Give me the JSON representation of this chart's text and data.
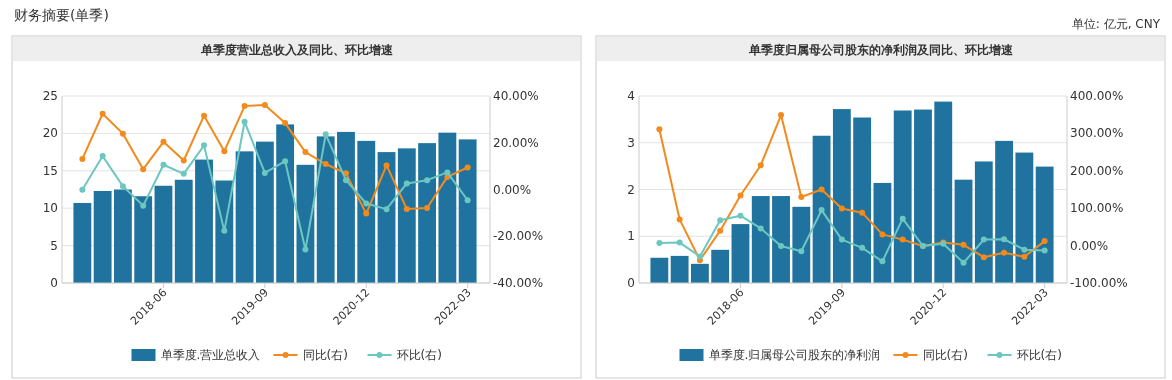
{
  "chart_data": [
    {
      "type": "bar",
      "title": "单季度营业总收入及同比、环比增速",
      "annotations": [
        "财务摘要(单季)"
      ],
      "categories": [
        null,
        null,
        null,
        null,
        "2018-06",
        null,
        null,
        null,
        null,
        "2019-09",
        null,
        null,
        null,
        null,
        "2020-12",
        null,
        null,
        null,
        null,
        "2022-03"
      ],
      "series": [
        {
          "name": "单季度.营业总收入",
          "color": "#21739f",
          "values": [
            10.7,
            12.3,
            12.5,
            11.6,
            13.0,
            13.8,
            16.5,
            13.7,
            17.6,
            18.9,
            21.2,
            15.8,
            19.6,
            20.2,
            19.0,
            17.5,
            18.0,
            18.7,
            20.1,
            19.2
          ]
        },
        {
          "name": "同比(右)",
          "type": "line",
          "axis": "y2",
          "color": "#f28a1e",
          "values": [
            13.1,
            32.4,
            23.9,
            8.7,
            20.4,
            12.4,
            31.6,
            16.4,
            35.7,
            36.1,
            28.4,
            16.0,
            10.9,
            6.9,
            -10.3,
            10.3,
            -8.3,
            -7.9,
            5.4,
            9.4
          ]
        },
        {
          "name": "环比(右)",
          "type": "line",
          "axis": "y2",
          "color": "#6cc7c0",
          "values": [
            -0.1,
            14.3,
            1.4,
            -6.9,
            10.6,
            6.7,
            18.9,
            -17.7,
            29.0,
            7.1,
            12.1,
            -25.7,
            23.6,
            4.0,
            -6.0,
            -8.4,
            2.6,
            4.0,
            7.3,
            -4.6
          ]
        }
      ],
      "ylim": [
        0,
        25
      ],
      "yticks": [
        0,
        5,
        10,
        15,
        20,
        25
      ],
      "y2lim": [
        -40,
        40
      ],
      "y2ticks": [
        {
          "value": -40,
          "label": "-40.00%"
        },
        {
          "value": -20,
          "label": "-20.00%"
        },
        {
          "value": 0,
          "label": "0.00%"
        },
        {
          "value": 20,
          "label": "20.00%"
        },
        {
          "value": 40,
          "label": "40.00%"
        }
      ],
      "grid": "y",
      "legend": "bottom",
      "marker": "circle"
    },
    {
      "type": "bar",
      "title": "单季度归属母公司股东的净利润及同比、环比增速",
      "annotations": [
        "单位: 亿元, CNY"
      ],
      "categories": [
        null,
        null,
        null,
        null,
        "2018-06",
        null,
        null,
        null,
        null,
        "2019-09",
        null,
        null,
        null,
        null,
        "2020-12",
        null,
        null,
        null,
        null,
        "2022-03"
      ],
      "series": [
        {
          "name": "单季度.归属母公司股东的净利润",
          "color": "#21739f",
          "values": [
            0.54,
            0.58,
            0.41,
            0.71,
            1.26,
            1.86,
            1.86,
            1.63,
            3.15,
            3.72,
            3.54,
            2.14,
            3.69,
            3.71,
            3.88,
            2.21,
            2.6,
            3.04,
            2.79,
            2.49
          ]
        },
        {
          "name": "同比(右)",
          "type": "line",
          "axis": "y2",
          "color": "#f28a1e",
          "values": [
            311,
            70,
            -39,
            40,
            134,
            215,
            349,
            130,
            150,
            99,
            88,
            30,
            16,
            -1,
            8,
            2,
            -31,
            -19,
            -30,
            12
          ]
        },
        {
          "name": "环比(右)",
          "type": "line",
          "axis": "y2",
          "color": "#6cc7c0",
          "values": [
            7,
            8,
            -29,
            68,
            80,
            46,
            -1,
            -15,
            95,
            16,
            -6,
            -42,
            72,
            -1,
            5,
            -46,
            16,
            17,
            -11,
            -13
          ]
        }
      ],
      "ylim": [
        0,
        4
      ],
      "yticks": [
        0,
        1,
        2,
        3,
        4
      ],
      "y2lim": [
        -100,
        400
      ],
      "y2ticks": [
        {
          "value": -100,
          "label": "-100.00%"
        },
        {
          "value": 0,
          "label": "0.00%"
        },
        {
          "value": 100,
          "label": "100.00%"
        },
        {
          "value": 200,
          "label": "200.00%"
        },
        {
          "value": 300,
          "label": "300.00%"
        },
        {
          "value": 400,
          "label": "400.00%"
        }
      ],
      "grid": "y",
      "legend": "bottom",
      "marker": "circle"
    }
  ]
}
